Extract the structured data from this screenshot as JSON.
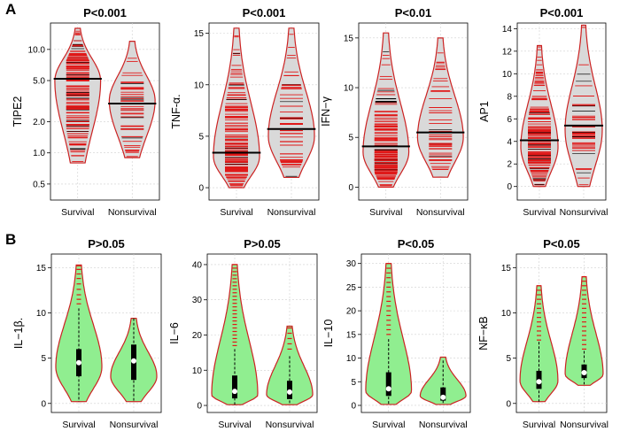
{
  "panel_labels": {
    "a": "A",
    "b": "B"
  },
  "chart_data": [
    {
      "type": "beanplot",
      "panel": "A",
      "title": "P<0.001",
      "ylabel": "TIPE2",
      "scale": "log",
      "categories": [
        "Survival",
        "Nonsurvival"
      ],
      "yticks": [
        0.5,
        1.0,
        2.0,
        5.0,
        10.0
      ],
      "ytick_labels": [
        "0.5",
        "1.0",
        "2.0",
        "5.0",
        "10.0"
      ],
      "ylim": [
        0.35,
        18
      ],
      "medians": [
        5.2,
        3.0
      ],
      "ranges": [
        [
          0.8,
          16
        ],
        [
          0.9,
          12
        ]
      ],
      "peaks": [
        5.0,
        3.2
      ]
    },
    {
      "type": "beanplot",
      "panel": "A",
      "title": "P<0.001",
      "ylabel": "TNF-α.",
      "scale": "linear",
      "categories": [
        "Survival",
        "Nonsurvival"
      ],
      "yticks": [
        0,
        5,
        10,
        15
      ],
      "ytick_labels": [
        "0",
        "5",
        "10",
        "15"
      ],
      "ylim": [
        -1.2,
        16
      ],
      "medians": [
        3.4,
        5.7
      ],
      "ranges": [
        [
          0,
          15.5
        ],
        [
          1.0,
          15.5
        ]
      ],
      "peaks": [
        3.0,
        5.0
      ]
    },
    {
      "type": "beanplot",
      "panel": "A",
      "title": "P<0.01",
      "ylabel": "IFN−γ",
      "scale": "linear",
      "categories": [
        "Survival",
        "Nonsurvival"
      ],
      "yticks": [
        0,
        5,
        10,
        15
      ],
      "ytick_labels": [
        "0",
        "5",
        "10",
        "15"
      ],
      "ylim": [
        -1.3,
        16.5
      ],
      "medians": [
        4.1,
        5.5
      ],
      "ranges": [
        [
          0,
          15.5
        ],
        [
          1.0,
          15
        ]
      ],
      "peaks": [
        3.5,
        5.0
      ]
    },
    {
      "type": "beanplot",
      "panel": "A",
      "title": "P<0.001",
      "ylabel": "AP1",
      "scale": "linear",
      "categories": [
        "Survival",
        "Nonsurvival"
      ],
      "yticks": [
        0,
        2,
        4,
        6,
        8,
        10,
        12,
        14
      ],
      "ytick_labels": [
        "0",
        "2",
        "4",
        "6",
        "8",
        "10",
        "12",
        "14"
      ],
      "ylim": [
        -1.2,
        14.5
      ],
      "medians": [
        4.1,
        5.4
      ],
      "ranges": [
        [
          0,
          12.5
        ],
        [
          0,
          14.3
        ]
      ],
      "peaks": [
        3.5,
        5.0
      ]
    },
    {
      "type": "violin",
      "panel": "B",
      "title": "P>0.05",
      "ylabel": "IL−1β.",
      "scale": "linear",
      "categories": [
        "Survival",
        "Nonsurvival"
      ],
      "yticks": [
        0,
        5,
        10,
        15
      ],
      "ytick_labels": [
        "0",
        "5",
        "10",
        "15"
      ],
      "ylim": [
        -1,
        16.5
      ],
      "medians": [
        4.5,
        4.7
      ],
      "q1": [
        3.0,
        2.6
      ],
      "q3": [
        6.0,
        6.5
      ],
      "whisker_low": [
        0.2,
        0.2
      ],
      "whisker_high": [
        10.5,
        9.4
      ],
      "ranges": [
        [
          0.2,
          15.3
        ],
        [
          0.2,
          9.4
        ]
      ],
      "peaks": [
        4.0,
        3.0
      ],
      "outliers": [
        [
          11.0,
          11.5,
          12.0,
          12.6,
          13.2,
          13.8,
          14.3,
          14.8,
          15.2
        ],
        []
      ]
    },
    {
      "type": "violin",
      "panel": "B",
      "title": "P>0.05",
      "ylabel": "IL−6",
      "scale": "linear",
      "categories": [
        "Survival",
        "Nonsurvival"
      ],
      "yticks": [
        0,
        10,
        20,
        30,
        40
      ],
      "ytick_labels": [
        "0",
        "10",
        "20",
        "30",
        "40"
      ],
      "ylim": [
        -2,
        43
      ],
      "medians": [
        4.0,
        3.8
      ],
      "q1": [
        2.0,
        1.8
      ],
      "q3": [
        8.5,
        7.0
      ],
      "whisker_low": [
        0.2,
        0.2
      ],
      "whisker_high": [
        16.0,
        14.0
      ],
      "ranges": [
        [
          0.2,
          40
        ],
        [
          0.2,
          22.5
        ]
      ],
      "peaks": [
        3.0,
        3.0
      ],
      "outliers": [
        [
          17,
          18,
          19,
          20,
          21,
          22,
          23,
          24,
          25,
          26,
          27,
          28,
          29,
          30,
          31,
          32,
          33,
          34,
          35,
          36,
          37,
          38,
          39,
          40
        ],
        [
          16,
          17.5,
          19,
          20.5,
          22
        ]
      ]
    },
    {
      "type": "violin",
      "panel": "B",
      "title": "P<0.05",
      "ylabel": "IL−10",
      "scale": "linear",
      "categories": [
        "Survival",
        "Nonsurvival"
      ],
      "yticks": [
        0,
        5,
        10,
        15,
        20,
        25,
        30
      ],
      "ytick_labels": [
        "0",
        "5",
        "10",
        "15",
        "20",
        "25",
        "30"
      ],
      "ylim": [
        -1.5,
        32
      ],
      "medians": [
        3.5,
        1.7
      ],
      "q1": [
        2.0,
        1.0
      ],
      "q3": [
        7.0,
        3.8
      ],
      "whisker_low": [
        0.2,
        0.2
      ],
      "whisker_high": [
        14.0,
        9.5
      ],
      "ranges": [
        [
          0.2,
          30
        ],
        [
          0.2,
          10.2
        ]
      ],
      "peaks": [
        3.0,
        2.0
      ],
      "outliers": [
        [
          15,
          16,
          17,
          18,
          19,
          20,
          21,
          22,
          23,
          24,
          25,
          26,
          27,
          28,
          29,
          30
        ],
        []
      ]
    },
    {
      "type": "violin",
      "panel": "B",
      "title": "P<0.05",
      "ylabel": "NF−κB",
      "scale": "linear",
      "categories": [
        "Survival",
        "Nonsurvival"
      ],
      "yticks": [
        0,
        5,
        10,
        15
      ],
      "ytick_labels": [
        "0",
        "5",
        "10",
        "15"
      ],
      "ylim": [
        -1,
        16.5
      ],
      "medians": [
        2.4,
        3.4
      ],
      "q1": [
        1.6,
        2.8
      ],
      "q3": [
        3.6,
        4.3
      ],
      "whisker_low": [
        0.2,
        2.1
      ],
      "whisker_high": [
        6.8,
        5.8
      ],
      "ranges": [
        [
          0.2,
          13
        ],
        [
          2.0,
          14
        ]
      ],
      "peaks": [
        2.5,
        3.2
      ],
      "outliers": [
        [
          7,
          7.5,
          8,
          8.5,
          9,
          9.5,
          10,
          10.5,
          11,
          11.5,
          12,
          12.5,
          13
        ],
        [
          6,
          6.5,
          7,
          7.5,
          8,
          8.5,
          9,
          9.5,
          10,
          10.5,
          11,
          11.5,
          12,
          12.5,
          13,
          13.5,
          14
        ]
      ]
    }
  ]
}
